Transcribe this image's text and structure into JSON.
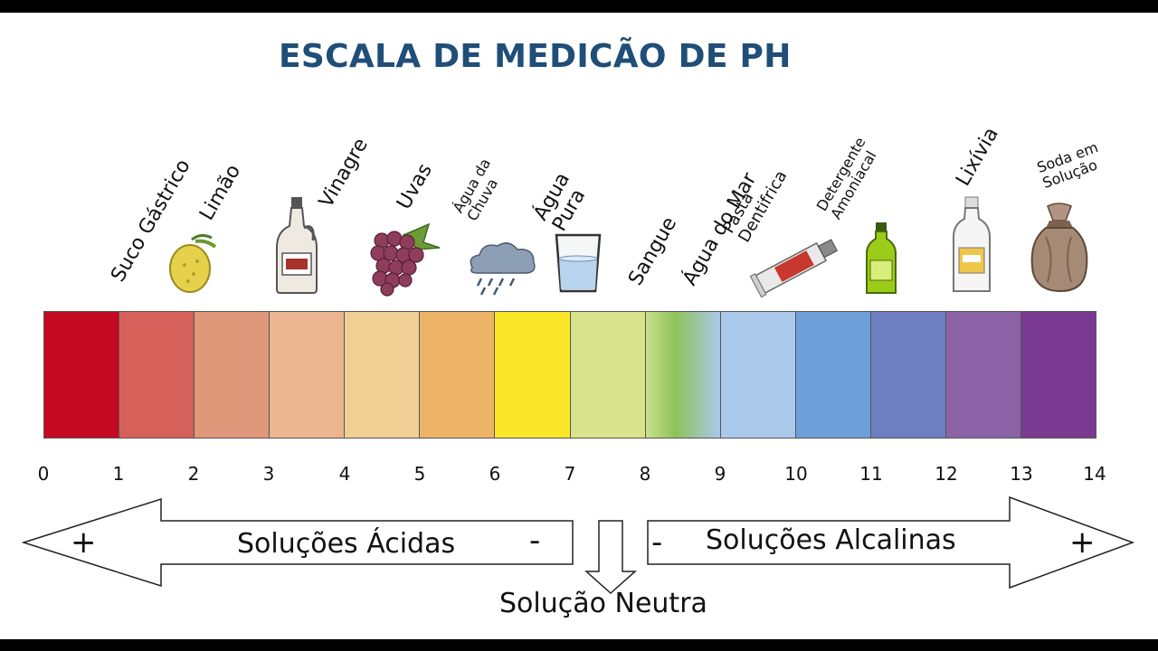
{
  "title": "ESCALA DE MEDICÃO DE PH",
  "scale": {
    "colors": [
      "#c40a23",
      "#d6605a",
      "#e0987a",
      "#eab58f",
      "#f1d095",
      "#edb467",
      "#fbe62a",
      "#d8e38b",
      "#bfde84",
      "#a9c8ea",
      "#6e9fd8",
      "#6d7fc0",
      "#8b62a6",
      "#7a3a91"
    ],
    "numbers": [
      "0",
      "1",
      "2",
      "3",
      "4",
      "5",
      "6",
      "7",
      "8",
      "9",
      "10",
      "11",
      "12",
      "13",
      "14"
    ]
  },
  "items": [
    {
      "label": "Suco Gástrico",
      "icon": "stomach-acid"
    },
    {
      "label": "Limão",
      "icon": "lemon-icon"
    },
    {
      "label": "Vinagre",
      "icon": "vinegar-bottle-icon"
    },
    {
      "label": "Uvas",
      "icon": "grapes-icon"
    },
    {
      "label": "Água da\nChuva",
      "icon": "rain-cloud-icon"
    },
    {
      "label": "Água\nPura",
      "icon": "water-glass-icon"
    },
    {
      "label": "Sangue",
      "icon": ""
    },
    {
      "label": "Água do Mar",
      "icon": ""
    },
    {
      "label": "Pasta\nDentifrica",
      "icon": "toothpaste-icon"
    },
    {
      "label": "Detergente\nAmoniacal",
      "icon": "detergent-bottle-icon"
    },
    {
      "label": "Lixívia",
      "icon": "bleach-bottle-icon"
    },
    {
      "label": "Soda em\nSolução",
      "icon": "soda-sack-icon"
    }
  ],
  "arrows": {
    "acid_label": "Soluções Ácidas",
    "alkaline_label": "Soluções Alcalinas",
    "neutral_label": "Solução Neutra",
    "plus": "+",
    "minus": "-"
  }
}
